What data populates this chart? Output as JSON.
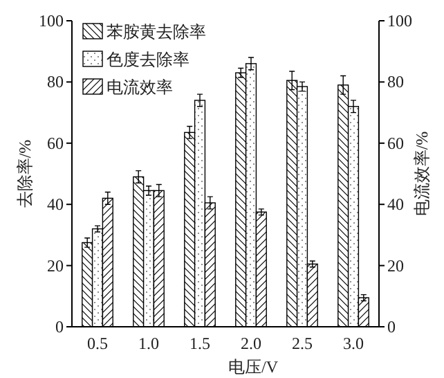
{
  "chart_data": {
    "type": "bar",
    "xlabel": "电压/V",
    "ylabel": "去除率/%",
    "y2label": "电流效率/%",
    "categories": [
      "0.5",
      "1.0",
      "1.5",
      "2.0",
      "2.5",
      "3.0"
    ],
    "ylim": [
      0,
      100
    ],
    "yticks": [
      0,
      20,
      40,
      60,
      80,
      100
    ],
    "y2lim": [
      0,
      100
    ],
    "y2ticks": [
      0,
      20,
      40,
      60,
      80,
      100
    ],
    "legend": "top left",
    "grid": false,
    "series": [
      {
        "name": "苯胺黄去除率",
        "color": "#000000",
        "values": [
          27.5,
          49,
          63.5,
          83,
          80.5,
          79
        ],
        "errors": [
          1.5,
          2,
          2,
          1.5,
          3,
          3
        ]
      },
      {
        "name": "色度去除率",
        "color": "#000000",
        "values": [
          32,
          44.5,
          74,
          86,
          78.5,
          72
        ],
        "errors": [
          1,
          1.5,
          2,
          2,
          1.5,
          2
        ]
      },
      {
        "name": "电流效率",
        "color": "#000000",
        "axis": "y2",
        "values": [
          42,
          44.5,
          40.5,
          37.5,
          20.5,
          9.5
        ],
        "errors": [
          2,
          2,
          2,
          1,
          1,
          1
        ]
      }
    ]
  }
}
